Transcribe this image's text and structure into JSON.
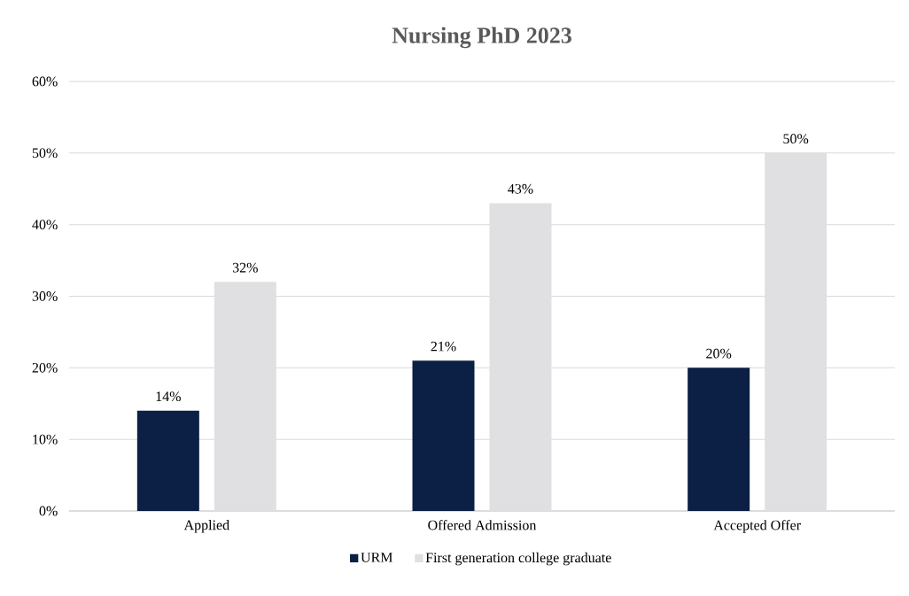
{
  "chart_data": {
    "type": "bar",
    "title": "Nursing PhD 2023",
    "categories": [
      "Applied",
      "Offered Admission",
      "Accepted Offer"
    ],
    "series": [
      {
        "name": "URM",
        "color": "#0c1f45",
        "values": [
          14,
          21,
          20
        ],
        "value_labels": [
          "14%",
          "21%",
          "20%"
        ]
      },
      {
        "name": "First generation college graduate",
        "color": "#e0e0e2",
        "values": [
          32,
          43,
          50
        ],
        "value_labels": [
          "32%",
          "43%",
          "50%"
        ]
      }
    ],
    "ylim": [
      0,
      60
    ],
    "yticks": [
      {
        "value": 0,
        "label": "0%"
      },
      {
        "value": 10,
        "label": "10%"
      },
      {
        "value": 20,
        "label": "20%"
      },
      {
        "value": 30,
        "label": "30%"
      },
      {
        "value": 40,
        "label": "40%"
      },
      {
        "value": 50,
        "label": "50%"
      },
      {
        "value": 60,
        "label": "60%"
      }
    ],
    "grid": "y",
    "legend": "bottom"
  }
}
